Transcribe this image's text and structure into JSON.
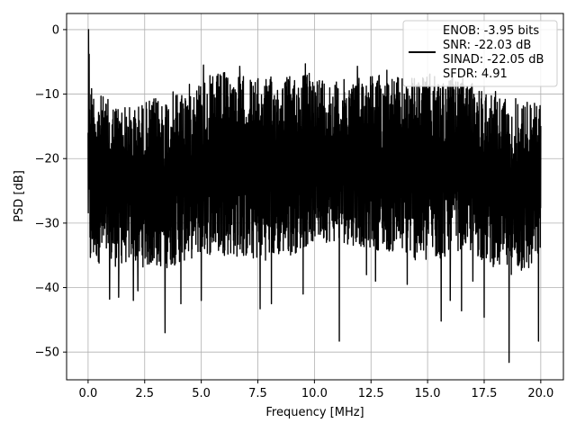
{
  "chart_data": {
    "type": "line",
    "title": "",
    "xlabel": "Frequency [MHz]",
    "ylabel": "PSD [dB]",
    "xlim": [
      -0.95,
      21.0
    ],
    "ylim": [
      -54.3,
      2.5
    ],
    "xticks": [
      0.0,
      2.5,
      5.0,
      7.5,
      10.0,
      12.5,
      15.0,
      17.5,
      20.0
    ],
    "xtick_labels": [
      "0.0",
      "2.5",
      "5.0",
      "7.5",
      "10.0",
      "12.5",
      "15.0",
      "17.5",
      "20.0"
    ],
    "yticks": [
      0,
      -10,
      -20,
      -30,
      -40,
      -50
    ],
    "ytick_labels": [
      "0",
      "−10",
      "−20",
      "−30",
      "−40",
      "−50"
    ],
    "grid": true,
    "legend_position": "top-right",
    "legend": {
      "lines": [
        "ENOB: -3.95 bits",
        "SNR: -22.03 dB",
        "SINAD: -22.05 dB",
        "SFDR: 4.91"
      ]
    },
    "series": [
      {
        "color": "#000000",
        "x_start": 0.0,
        "x_end": 20.0,
        "envelope": {
          "x": [
            0.0,
            0.05,
            0.1,
            0.3,
            1.0,
            2.0,
            2.5,
            3.5,
            5.0,
            6.0,
            7.5,
            9.0,
            10.0,
            11.0,
            12.5,
            14.0,
            15.0,
            16.5,
            17.5,
            18.5,
            19.5,
            20.0
          ],
          "upper": [
            -16,
            0.0,
            -7,
            -9.5,
            -11,
            -12,
            -11,
            -10,
            -7.5,
            -6.5,
            -7.5,
            -7,
            -6.5,
            -8,
            -6.5,
            -7.5,
            -7,
            -7.5,
            -9,
            -10,
            -11,
            -11
          ],
          "lower": [
            -30,
            -35,
            -38,
            -36,
            -37,
            -36,
            -37,
            -37,
            -35,
            -35,
            -36,
            -35,
            -33,
            -33,
            -34,
            -35,
            -37,
            -34,
            -36,
            -38,
            -38,
            -35
          ]
        },
        "dips": [
          {
            "x": 0.95,
            "y": -41.8
          },
          {
            "x": 1.35,
            "y": -41.5
          },
          {
            "x": 2.0,
            "y": -42.0
          },
          {
            "x": 2.2,
            "y": -40.5
          },
          {
            "x": 3.4,
            "y": -47.0
          },
          {
            "x": 4.1,
            "y": -42.5
          },
          {
            "x": 5.0,
            "y": -42.0
          },
          {
            "x": 7.6,
            "y": -43.3
          },
          {
            "x": 8.1,
            "y": -42.5
          },
          {
            "x": 9.5,
            "y": -41.0
          },
          {
            "x": 11.1,
            "y": -48.3
          },
          {
            "x": 12.3,
            "y": -38.0
          },
          {
            "x": 12.7,
            "y": -39.0
          },
          {
            "x": 14.1,
            "y": -39.5
          },
          {
            "x": 15.6,
            "y": -45.2
          },
          {
            "x": 16.0,
            "y": -42.0
          },
          {
            "x": 16.5,
            "y": -43.6
          },
          {
            "x": 17.0,
            "y": -39.0
          },
          {
            "x": 17.5,
            "y": -44.6
          },
          {
            "x": 18.6,
            "y": -51.6
          },
          {
            "x": 19.9,
            "y": -48.3
          }
        ],
        "peaks": [
          {
            "x": 0.0,
            "y": 0.0
          },
          {
            "x": 5.1,
            "y": -5.5
          },
          {
            "x": 6.7,
            "y": -5.7
          },
          {
            "x": 9.6,
            "y": -5.3
          },
          {
            "x": 11.9,
            "y": -5.7
          },
          {
            "x": 13.2,
            "y": -6.3
          },
          {
            "x": 15.1,
            "y": -6.9
          },
          {
            "x": 16.1,
            "y": -7.1
          }
        ]
      }
    ]
  }
}
